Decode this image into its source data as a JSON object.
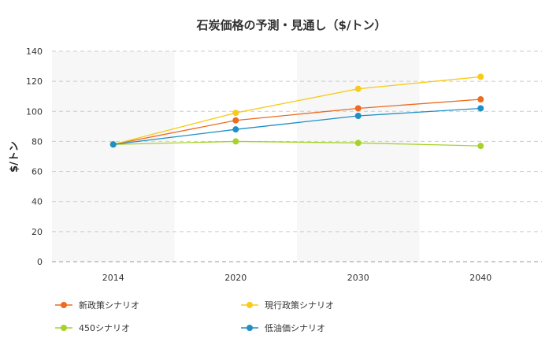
{
  "chart_data": {
    "type": "line",
    "title": "石炭価格の予測・見通し（$/トン）",
    "xlabel": "",
    "ylabel": "$/トン",
    "categories": [
      "2014",
      "2020",
      "2030",
      "2040"
    ],
    "ylim": [
      0,
      140
    ],
    "yticks": [
      0,
      20,
      40,
      60,
      80,
      100,
      120,
      140
    ],
    "grid": true,
    "legend_position": "bottom",
    "series": [
      {
        "name": "新政策シナリオ",
        "color": "#ec6b1e",
        "values": [
          78,
          94,
          102,
          108
        ]
      },
      {
        "name": "現行政策シナリオ",
        "color": "#f7cb1a",
        "values": [
          78,
          99,
          115,
          123
        ]
      },
      {
        "name": "450シナリオ",
        "color": "#a6d22a",
        "values": [
          78,
          80,
          79,
          77
        ]
      },
      {
        "name": "低油価シナリオ",
        "color": "#1f8fc6",
        "values": [
          78,
          88,
          97,
          102
        ]
      }
    ]
  }
}
